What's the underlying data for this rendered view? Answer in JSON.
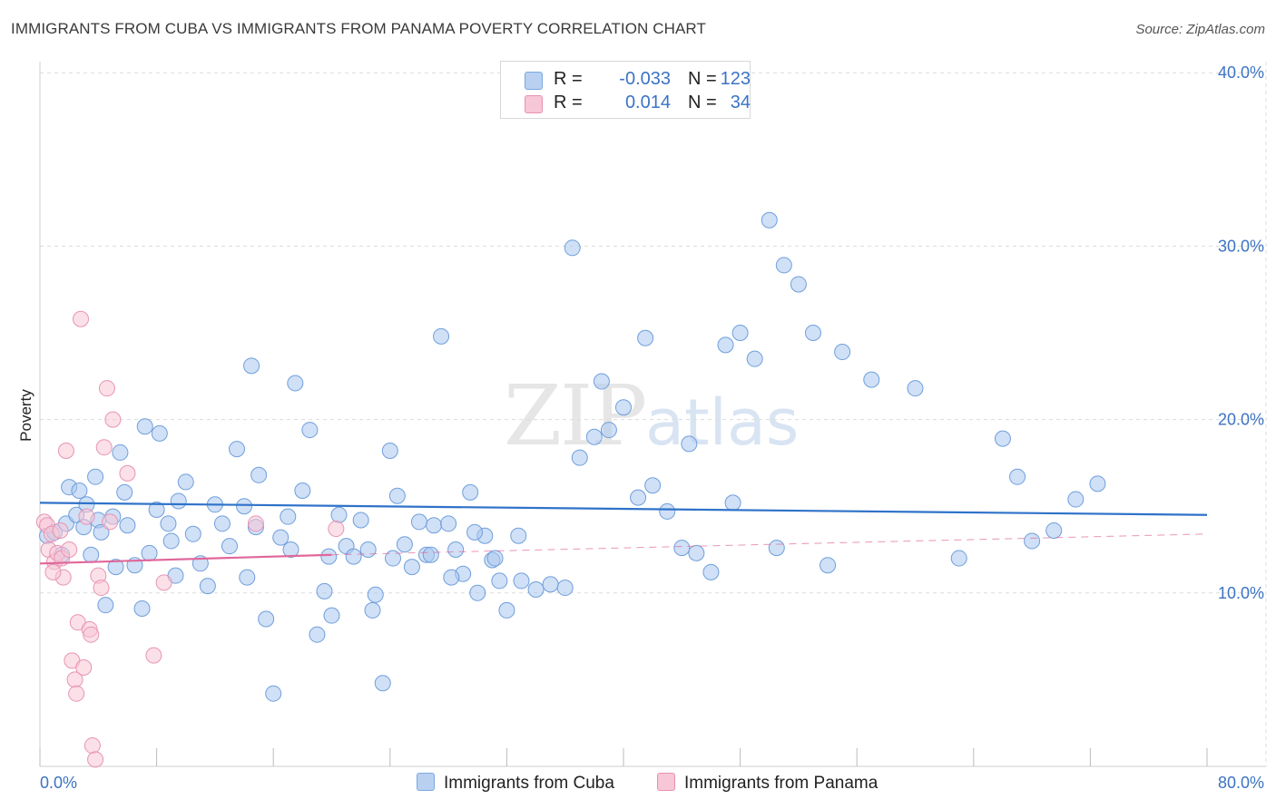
{
  "title": "IMMIGRANTS FROM CUBA VS IMMIGRANTS FROM PANAMA POVERTY CORRELATION CHART",
  "source": "Source: ZipAtlas.com",
  "watermark": {
    "zip": "ZIP",
    "atlas": "atlas"
  },
  "legend": {
    "r_label": "R =",
    "n_label": "N =",
    "rows": [
      {
        "r": "-0.033",
        "n": "123",
        "color": "#7aa7e0",
        "fill": "#b9d0f0"
      },
      {
        "r": "0.014",
        "n": "34",
        "color": "#e890b0",
        "fill": "#f7c6d7"
      }
    ]
  },
  "bottom_legend": [
    "Immigrants from Cuba",
    "Immigrants from Panama"
  ],
  "colors": {
    "cuba_point": "#a9c6ee",
    "cuba_stroke": "#6f9fdc",
    "cuba_line": "#2f72c9",
    "panama_point": "#f7c6d6",
    "panama_stroke": "#e894b3",
    "panama_line": "#e0679a",
    "tick": "#3b73c4",
    "grid": "#dcdcdc"
  },
  "chart_data": {
    "type": "scatter",
    "title": "IMMIGRANTS FROM CUBA VS IMMIGRANTS FROM PANAMA POVERTY CORRELATION CHART",
    "xlabel": "",
    "ylabel": "Poverty",
    "xlim": [
      0,
      80
    ],
    "ylim": [
      0,
      40
    ],
    "x_tick_labels": [
      "0.0%",
      "80.0%"
    ],
    "y_ticks": [
      10,
      20,
      30,
      40
    ],
    "y_tick_labels": [
      "10.0%",
      "20.0%",
      "30.0%",
      "40.0%"
    ],
    "series": [
      {
        "name": "Immigrants from Cuba",
        "R": -0.033,
        "N": 123,
        "trend": {
          "x": [
            0,
            80
          ],
          "y": [
            15.2,
            14.5
          ]
        },
        "x": [
          0.5,
          1.0,
          1.5,
          1.8,
          2.0,
          2.5,
          2.7,
          3.0,
          3.2,
          3.5,
          3.8,
          4.0,
          4.2,
          4.5,
          5.0,
          5.2,
          5.5,
          6.0,
          6.5,
          7.0,
          7.2,
          7.5,
          8.0,
          8.2,
          9.0,
          9.3,
          9.5,
          10.0,
          10.5,
          11.0,
          11.5,
          12.0,
          12.5,
          13.0,
          13.5,
          14.0,
          14.2,
          14.5,
          15.0,
          15.5,
          16.0,
          16.5,
          17.0,
          17.5,
          18.0,
          18.5,
          19.0,
          19.5,
          20.0,
          20.5,
          21.0,
          21.5,
          22.0,
          22.5,
          23.0,
          23.5,
          24.0,
          24.5,
          25.0,
          25.5,
          26.0,
          26.5,
          27.0,
          27.5,
          28.0,
          28.5,
          29.0,
          29.5,
          30.0,
          30.5,
          31.0,
          31.5,
          32.0,
          33.0,
          34.0,
          35.0,
          36.0,
          37.0,
          38.0,
          39.0,
          40.0,
          41.0,
          42.0,
          43.0,
          44.0,
          45.0,
          46.0,
          47.0,
          48.0,
          49.0,
          50.0,
          51.0,
          52.0,
          53.0,
          55.0,
          57.0,
          60.0,
          63.0,
          66.0,
          67.0,
          68.0,
          69.5,
          71.0,
          72.5,
          5.8,
          8.8,
          14.8,
          17.2,
          19.8,
          22.8,
          24.2,
          26.8,
          28.2,
          29.8,
          31.2,
          32.8,
          36.5,
          38.5,
          41.5,
          44.5,
          47.5,
          50.5,
          54.0
        ],
        "y": [
          13.3,
          13.5,
          12.2,
          14.0,
          16.1,
          14.5,
          15.9,
          13.8,
          15.1,
          12.2,
          16.7,
          14.2,
          13.5,
          9.3,
          14.4,
          11.5,
          18.1,
          13.9,
          11.6,
          9.1,
          19.6,
          12.3,
          14.8,
          19.2,
          13.0,
          11.0,
          15.3,
          16.4,
          13.4,
          11.7,
          10.4,
          15.1,
          14.0,
          12.7,
          18.3,
          15.0,
          10.9,
          23.1,
          16.8,
          8.5,
          4.2,
          13.2,
          14.4,
          22.1,
          15.9,
          19.4,
          7.6,
          10.1,
          8.7,
          14.5,
          12.7,
          12.1,
          14.2,
          12.5,
          9.9,
          4.8,
          18.2,
          15.6,
          12.8,
          11.5,
          14.1,
          12.2,
          13.9,
          24.8,
          14.0,
          12.5,
          11.1,
          15.8,
          10.0,
          13.3,
          11.9,
          10.7,
          9.0,
          10.7,
          10.2,
          10.5,
          10.3,
          17.8,
          19.0,
          19.4,
          20.7,
          15.5,
          16.2,
          14.7,
          12.6,
          12.3,
          11.2,
          24.3,
          25.0,
          23.5,
          31.5,
          28.9,
          27.8,
          25.0,
          23.9,
          22.3,
          21.8,
          12.0,
          18.9,
          16.7,
          13.0,
          13.6,
          15.4,
          16.3,
          15.8,
          14.0,
          13.8,
          12.5,
          12.1,
          9.0,
          12.0,
          12.2,
          10.9,
          13.5,
          12.0,
          13.3,
          29.9,
          22.2,
          24.7,
          18.6,
          15.2,
          12.6,
          11.6
        ]
      },
      {
        "name": "Immigrants from Panama",
        "R": 0.014,
        "N": 34,
        "trend": {
          "x": [
            0,
            20
          ],
          "y": [
            11.7,
            12.2
          ]
        },
        "trend_dashed": {
          "x": [
            20,
            80
          ],
          "y": [
            12.2,
            13.4
          ]
        },
        "x": [
          0.3,
          0.5,
          0.6,
          0.8,
          1.0,
          1.2,
          1.4,
          1.5,
          1.6,
          1.8,
          2.0,
          2.2,
          2.4,
          2.5,
          2.6,
          2.8,
          3.0,
          3.2,
          3.4,
          3.5,
          3.6,
          3.8,
          4.0,
          4.2,
          4.4,
          4.6,
          4.8,
          5.0,
          6.0,
          7.8,
          8.5,
          14.8,
          20.3,
          0.9
        ],
        "y": [
          14.1,
          13.9,
          12.5,
          13.4,
          11.8,
          12.3,
          13.6,
          12.0,
          10.9,
          18.2,
          12.5,
          6.1,
          5.0,
          4.2,
          8.3,
          25.8,
          5.7,
          14.4,
          7.9,
          7.6,
          1.2,
          0.4,
          11.0,
          10.3,
          18.4,
          21.8,
          14.1,
          20.0,
          16.9,
          6.4,
          10.6,
          14.0,
          13.7,
          11.2
        ]
      }
    ]
  }
}
